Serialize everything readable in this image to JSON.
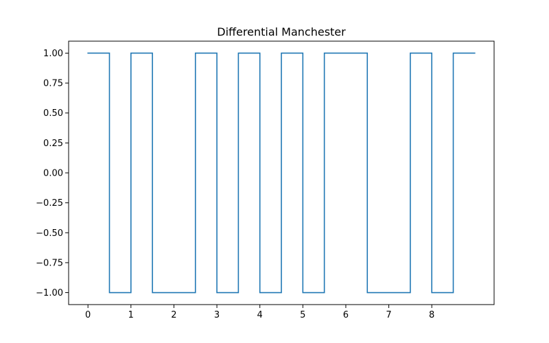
{
  "chart_data": {
    "type": "line",
    "title": "Differential Manchester",
    "xlabel": "",
    "ylabel": "",
    "xlim": [
      -0.45,
      9.45
    ],
    "ylim": [
      -1.1,
      1.1
    ],
    "grid": false,
    "legend": "none",
    "line_color": "#1f77b4",
    "step": "post",
    "x_ticks": [
      0,
      1,
      2,
      3,
      4,
      5,
      6,
      7,
      8
    ],
    "x_tick_labels": [
      "0",
      "1",
      "2",
      "3",
      "4",
      "5",
      "6",
      "7",
      "8"
    ],
    "y_ticks": [
      1.0,
      0.75,
      0.5,
      0.25,
      0.0,
      -0.25,
      -0.5,
      -0.75,
      -1.0
    ],
    "y_tick_labels": [
      "1.00",
      "0.75",
      "0.50",
      "0.25",
      "0.00",
      "−0.25",
      "−0.50",
      "−0.75",
      "−1.00"
    ],
    "series": [
      {
        "x": [
          0,
          0.5,
          1,
          1.5,
          2,
          2.5,
          3,
          3.5,
          4,
          4.5,
          5,
          5.5,
          6,
          6.5,
          7,
          7.5,
          8,
          8.5,
          9
        ],
        "values": [
          1,
          -1,
          1,
          -1,
          -1,
          1,
          -1,
          1,
          -1,
          1,
          -1,
          1,
          1,
          -1,
          -1,
          1,
          -1,
          1,
          1
        ]
      }
    ]
  }
}
